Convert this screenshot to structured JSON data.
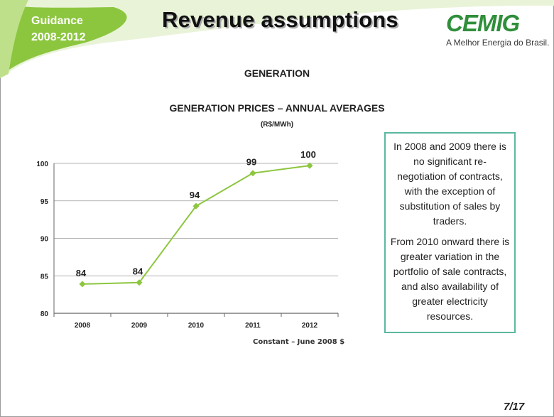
{
  "header": {
    "section_line1": "Guidance",
    "section_line2": "2008-2012",
    "title": "Revenue assumptions",
    "logo_text": "CEMIG",
    "logo_tagline": "A Melhor Energia do Brasil.",
    "colors": {
      "banner_green": "#8cc63f",
      "logo_green": "#2f8f3a"
    }
  },
  "main": {
    "section_heading": "GENERATION",
    "footnote": "Constant – June 2008 $"
  },
  "chart_data": {
    "type": "line",
    "title": "GENERATION PRICES – ANNUAL AVERAGES",
    "subtitle": "(R$/MWh)",
    "xlabel": "",
    "ylabel": "",
    "categories": [
      "2008",
      "2009",
      "2010",
      "2011",
      "2012"
    ],
    "series": [
      {
        "values": [
          83.9,
          84.1,
          94.3,
          98.7,
          99.7
        ],
        "color": "#8dc63f"
      }
    ],
    "data_labels": [
      "84",
      "84",
      "94",
      "99",
      "100"
    ],
    "y_ticks": [
      "80",
      "85",
      "90",
      "95",
      "100"
    ],
    "ylim": [
      80,
      100
    ],
    "grid": true,
    "legend": "none"
  },
  "note": {
    "paragraph1": "In 2008 and 2009  there is no significant re-negotiation of contracts, with the exception of substitution of sales by traders.",
    "paragraph2": "From 2010 onward there is greater variation in the portfolio of sale contracts, and also availability of greater electricity resources.",
    "border_color": "#5bb8a0"
  },
  "footer": {
    "page_number": "7/17"
  }
}
